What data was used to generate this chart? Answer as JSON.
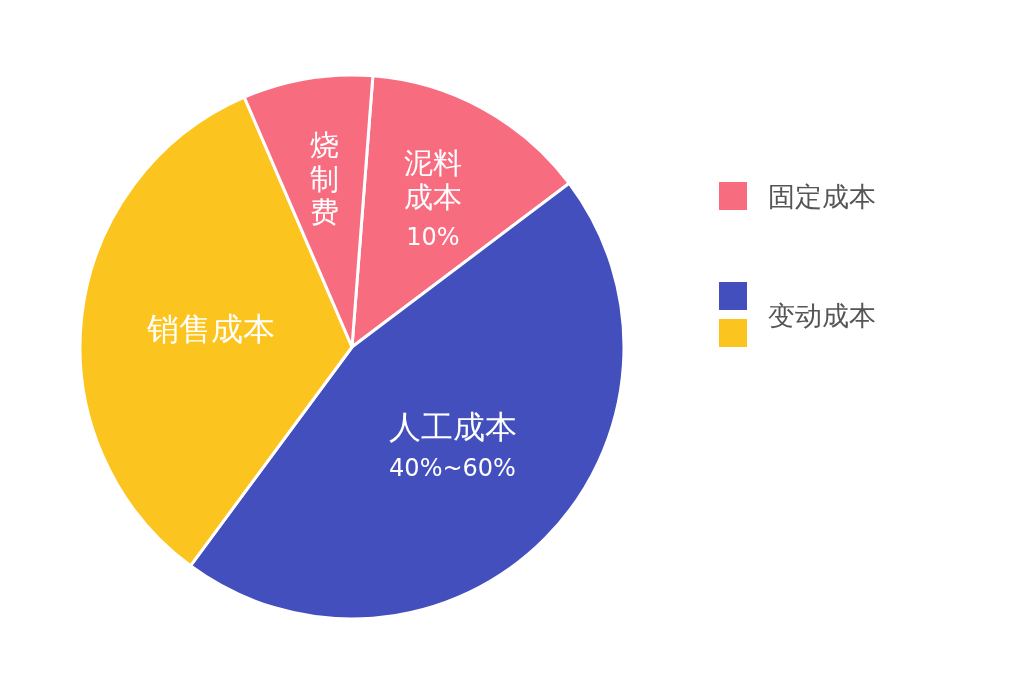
{
  "chart_data": {
    "type": "pie",
    "categories": [
      "泥料成本",
      "人工成本",
      "销售成本",
      "烧制费"
    ],
    "values": [
      13.5,
      45.4,
      33.4,
      7.7
    ],
    "colors": [
      "#f86c80",
      "#434fbd",
      "#fcc41f",
      "#f86c80"
    ],
    "annotations": [
      {
        "text": "10%",
        "x": "泥料成本"
      },
      {
        "text": "40%~60%",
        "x": "人工成本"
      },
      "固定成本",
      "变动成本"
    ]
  }
}
